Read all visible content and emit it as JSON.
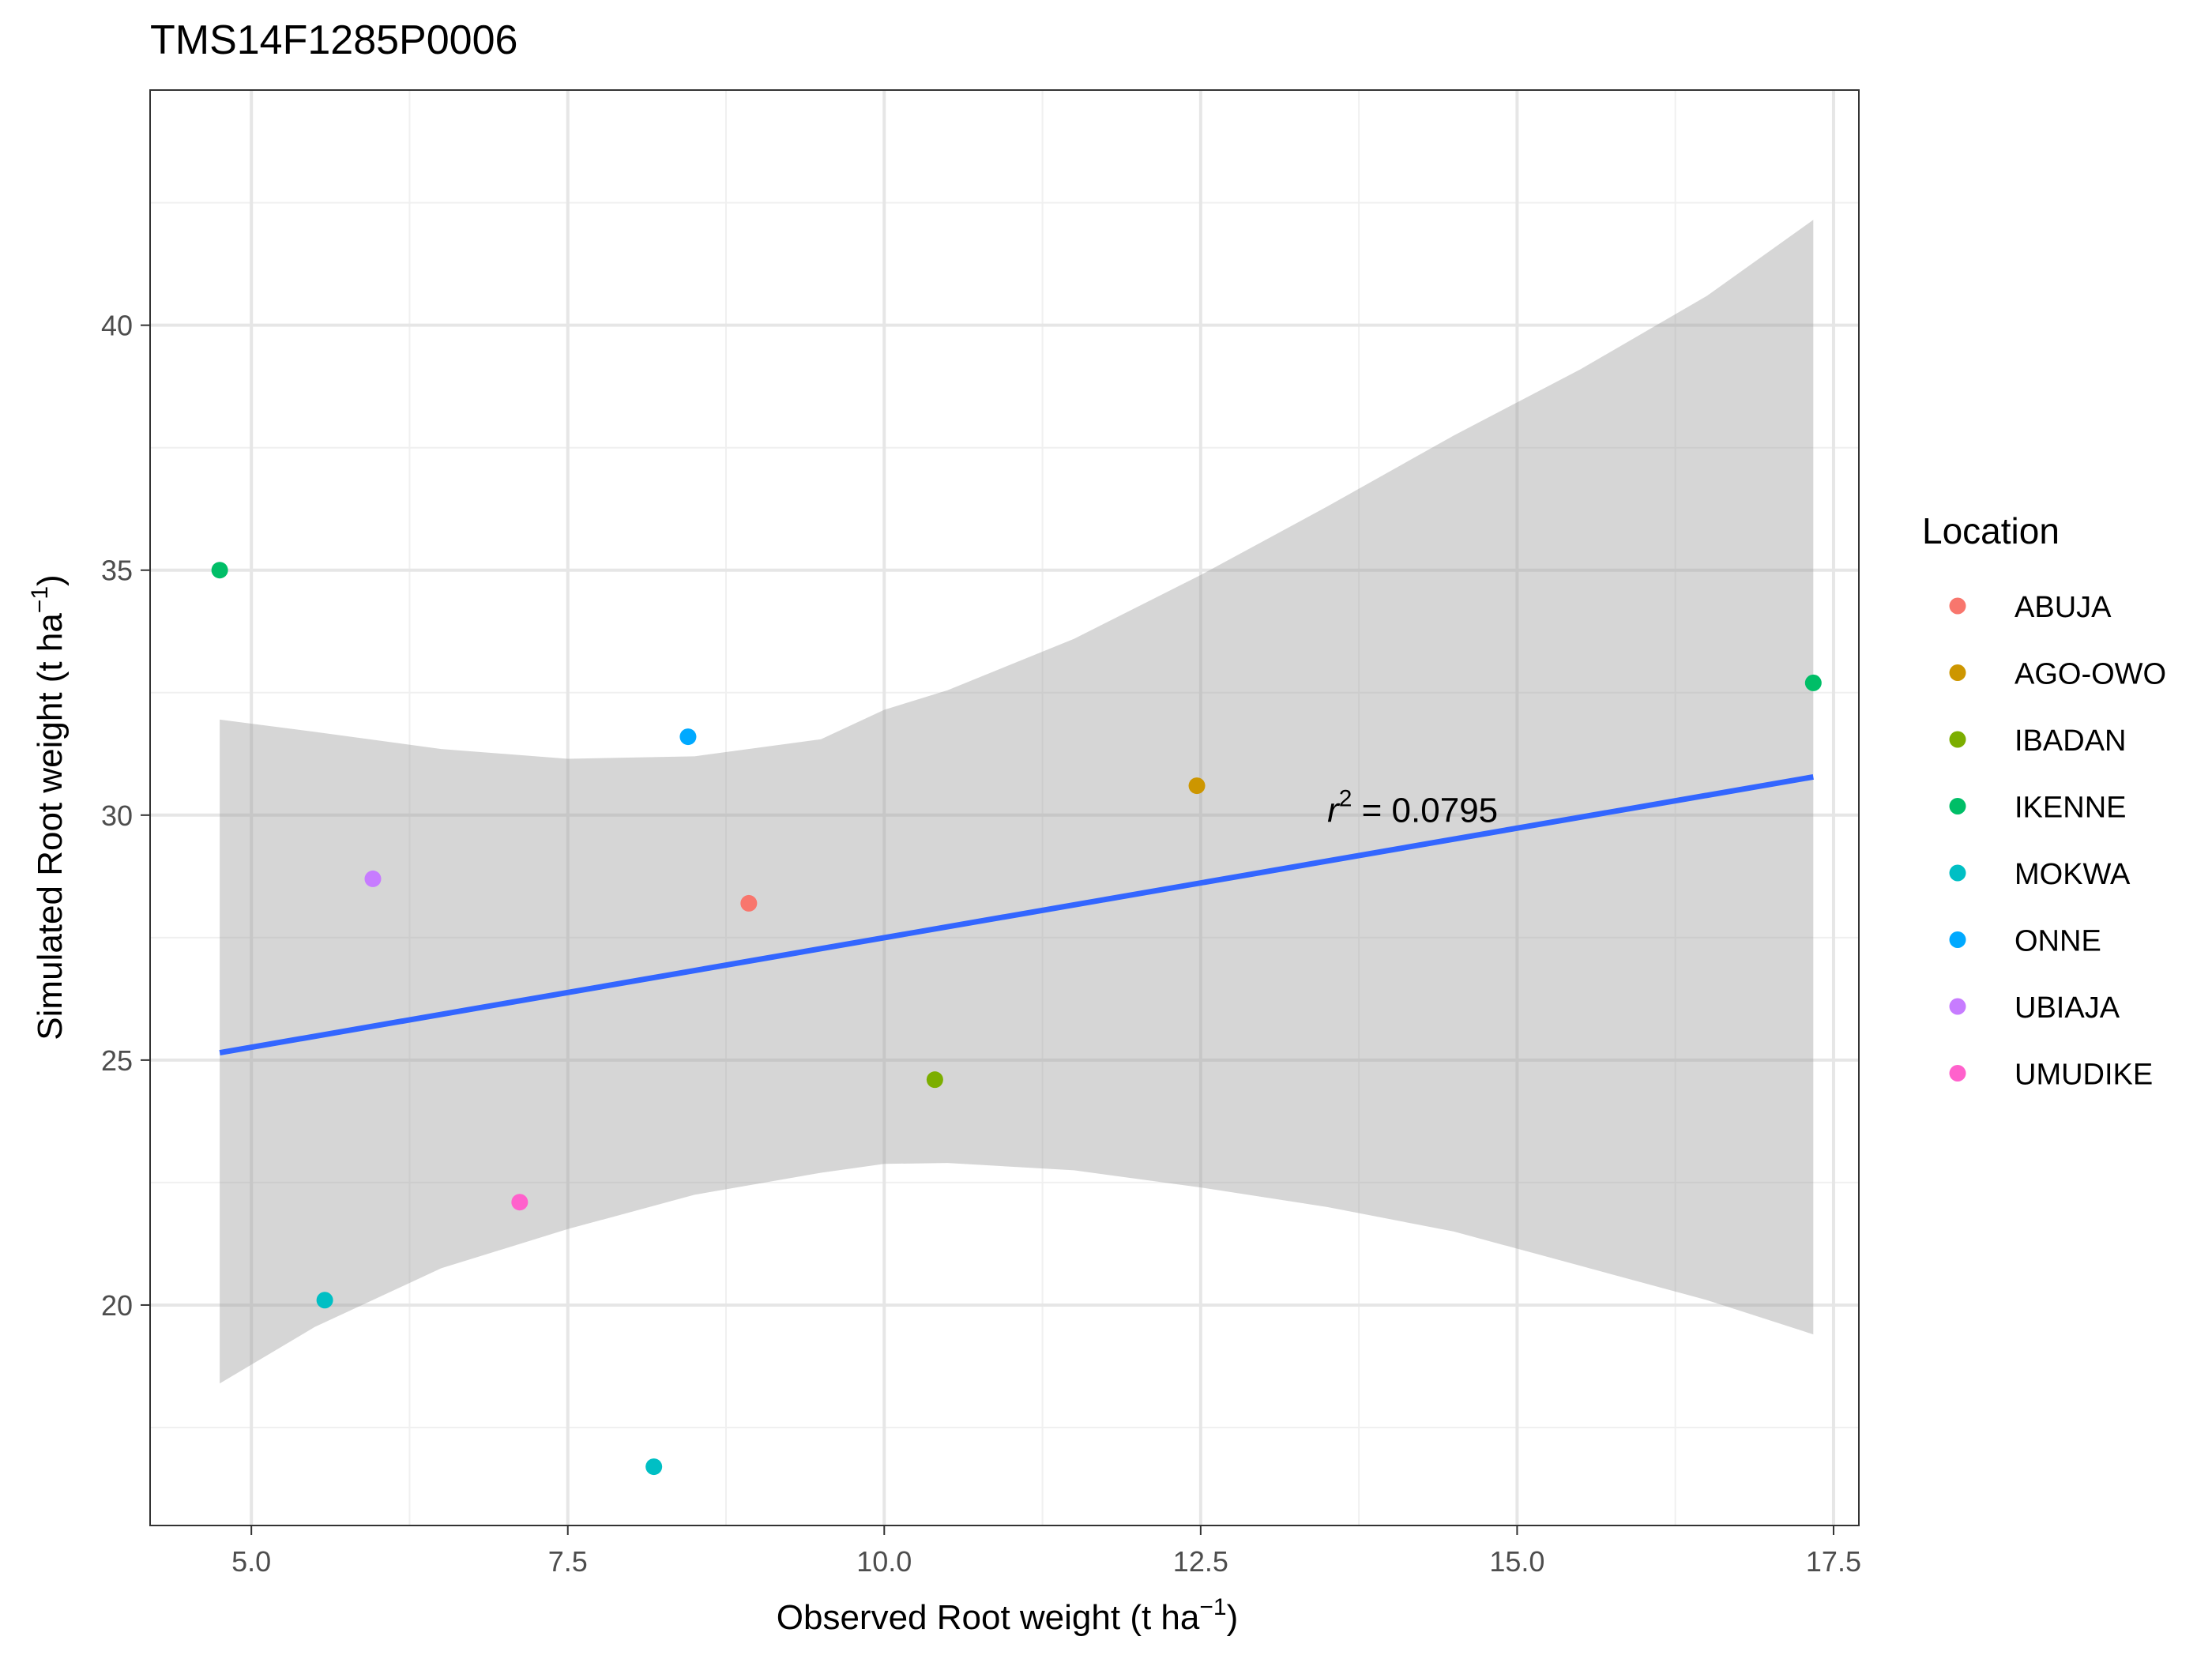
{
  "chart_data": {
    "type": "scatter",
    "title": "TMS14F1285P0006",
    "xlabel": "Observed Root weight",
    "xlabel_unit": "t ha",
    "xlabel_unit_exp": "−1",
    "ylabel": "Simulated Root weight",
    "ylabel_unit": "t ha",
    "ylabel_unit_exp": "−1",
    "xlim": [
      4.2,
      17.7
    ],
    "ylim": [
      15.5,
      44.8
    ],
    "x_ticks": [
      {
        "value": 5.0,
        "label": "5.0"
      },
      {
        "value": 7.5,
        "label": "7.5"
      },
      {
        "value": 10.0,
        "label": "10.0"
      },
      {
        "value": 12.5,
        "label": "12.5"
      },
      {
        "value": 15.0,
        "label": "15.0"
      },
      {
        "value": 17.5,
        "label": "17.5"
      }
    ],
    "y_ticks": [
      {
        "value": 20,
        "label": "20"
      },
      {
        "value": 25,
        "label": "25"
      },
      {
        "value": 30,
        "label": "30"
      },
      {
        "value": 35,
        "label": "35"
      },
      {
        "value": 40,
        "label": "40"
      }
    ],
    "grid": true,
    "legend": {
      "title": "Location",
      "position": "right",
      "items": [
        {
          "label": "ABUJA",
          "color": "#F8766D"
        },
        {
          "label": "AGO-OWO",
          "color": "#CD9600"
        },
        {
          "label": "IBADAN",
          "color": "#7CAE00"
        },
        {
          "label": "IKENNE",
          "color": "#00BE67"
        },
        {
          "label": "MOKWA",
          "color": "#00BFC4"
        },
        {
          "label": "ONNE",
          "color": "#00A9FF"
        },
        {
          "label": "UBIAJA",
          "color": "#C77CFF"
        },
        {
          "label": "UMUDIKE",
          "color": "#FF61CC"
        }
      ]
    },
    "points": [
      {
        "location": "IKENNE",
        "x": 4.75,
        "y": 35.0
      },
      {
        "location": "MOKWA",
        "x": 5.58,
        "y": 20.1
      },
      {
        "location": "UBIAJA",
        "x": 5.96,
        "y": 28.7
      },
      {
        "location": "UMUDIKE",
        "x": 7.12,
        "y": 22.1
      },
      {
        "location": "MOKWA",
        "x": 8.18,
        "y": 16.7
      },
      {
        "location": "ONNE",
        "x": 8.45,
        "y": 31.6
      },
      {
        "location": "ABUJA",
        "x": 8.93,
        "y": 28.2
      },
      {
        "location": "IBADAN",
        "x": 10.4,
        "y": 24.6
      },
      {
        "location": "AGO-OWO",
        "x": 12.47,
        "y": 30.6
      },
      {
        "location": "IKENNE",
        "x": 17.34,
        "y": 32.7
      }
    ],
    "regression": {
      "color": "#3366FF",
      "line": [
        {
          "x": 4.75,
          "y": 25.15
        },
        {
          "x": 17.34,
          "y": 30.78
        }
      ],
      "confidence_band": [
        {
          "x": 4.75,
          "lower": 18.4,
          "upper": 31.95
        },
        {
          "x": 5.5,
          "lower": 19.55,
          "upper": 31.7
        },
        {
          "x": 6.5,
          "lower": 20.75,
          "upper": 31.35
        },
        {
          "x": 7.5,
          "lower": 21.55,
          "upper": 31.15
        },
        {
          "x": 8.5,
          "lower": 22.25,
          "upper": 31.2
        },
        {
          "x": 9.5,
          "lower": 22.7,
          "upper": 31.55
        },
        {
          "x": 10.0,
          "lower": 22.88,
          "upper": 32.15
        },
        {
          "x": 10.5,
          "lower": 22.9,
          "upper": 32.55
        },
        {
          "x": 11.5,
          "lower": 22.75,
          "upper": 33.6
        },
        {
          "x": 12.5,
          "lower": 22.4,
          "upper": 34.9
        },
        {
          "x": 13.5,
          "lower": 22.0,
          "upper": 36.3
        },
        {
          "x": 14.5,
          "lower": 21.5,
          "upper": 37.75
        },
        {
          "x": 15.5,
          "lower": 20.8,
          "upper": 39.1
        },
        {
          "x": 16.5,
          "lower": 20.1,
          "upper": 40.6
        },
        {
          "x": 17.34,
          "lower": 19.4,
          "upper": 42.15
        }
      ]
    },
    "annotation": {
      "prefix": "r",
      "exponent": "2",
      "text": " = 0.0795",
      "x": 13.5,
      "y": 30.1
    }
  }
}
